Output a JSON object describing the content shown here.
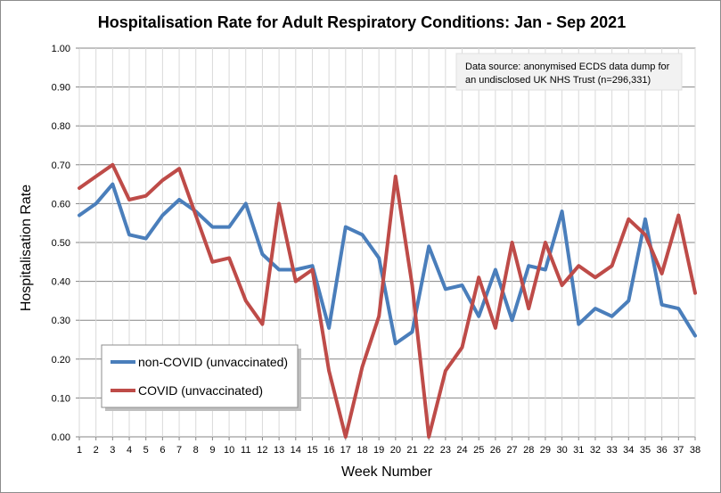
{
  "chart_data": {
    "type": "line",
    "title": "Hospitalisation  Rate for Adult Respiratory Conditions:  Jan - Sep 2021",
    "xlabel": "Week Number",
    "ylabel": "Hospitalisation Rate",
    "annotation": [
      "Data source: anonymised ECDS data dump for",
      "an undisclosed UK NHS Trust (n=296,331)"
    ],
    "x": [
      1,
      2,
      3,
      4,
      5,
      6,
      7,
      8,
      9,
      10,
      11,
      12,
      13,
      14,
      15,
      16,
      17,
      18,
      19,
      20,
      21,
      22,
      23,
      24,
      25,
      26,
      27,
      28,
      29,
      30,
      31,
      32,
      33,
      34,
      35,
      36,
      37,
      38
    ],
    "xlim": [
      1,
      38
    ],
    "ylim": [
      0,
      1
    ],
    "yticks": [
      "0.00",
      "0.10",
      "0.20",
      "0.30",
      "0.40",
      "0.50",
      "0.60",
      "0.70",
      "0.80",
      "0.90",
      "1.00"
    ],
    "grid": true,
    "legend_position": "bottom-left",
    "series": [
      {
        "name": "non-COVID (unvaccinated)",
        "color": "#4a7ebb",
        "values": [
          0.57,
          0.6,
          0.65,
          0.52,
          0.51,
          0.57,
          0.61,
          0.58,
          0.54,
          0.54,
          0.6,
          0.47,
          0.43,
          0.43,
          0.44,
          0.28,
          0.54,
          0.52,
          0.46,
          0.24,
          0.27,
          0.49,
          0.38,
          0.39,
          0.31,
          0.43,
          0.3,
          0.44,
          0.43,
          0.58,
          0.29,
          0.33,
          0.31,
          0.35,
          0.56,
          0.34,
          0.33,
          0.26
        ]
      },
      {
        "name": "COVID (unvaccinated)",
        "color": "#be4b48",
        "values": [
          0.64,
          0.67,
          0.7,
          0.61,
          0.62,
          0.66,
          0.69,
          0.57,
          0.45,
          0.46,
          0.35,
          0.29,
          0.6,
          0.4,
          0.43,
          0.17,
          0.0,
          0.18,
          0.31,
          0.67,
          0.39,
          0.0,
          0.17,
          0.23,
          0.41,
          0.28,
          0.5,
          0.33,
          0.5,
          0.39,
          0.44,
          0.41,
          0.44,
          0.56,
          0.52,
          0.42,
          0.57,
          0.37
        ]
      }
    ]
  }
}
